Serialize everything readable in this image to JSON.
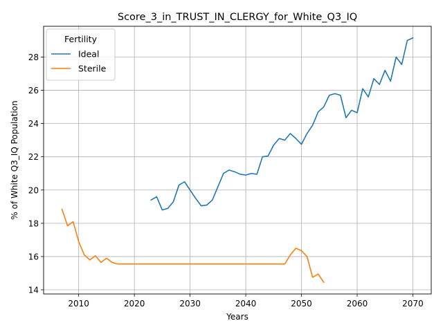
{
  "chart_data": {
    "type": "line",
    "title": "Score_3_in_TRUST_IN_CLERGY_for_White_Q3_IQ",
    "xlabel": "Years",
    "ylabel": "% of White Q3_IQ Population",
    "xlim": [
      2003.7,
      2073.3
    ],
    "ylim": [
      13.75,
      29.85
    ],
    "xticks": [
      2010,
      2020,
      2030,
      2040,
      2050,
      2060,
      2070
    ],
    "yticks": [
      14,
      16,
      18,
      20,
      22,
      24,
      26,
      28
    ],
    "grid": true,
    "legend": {
      "title": "Fertility",
      "position": "top-left"
    },
    "series": [
      {
        "name": "Ideal",
        "color": "#1f77b4",
        "x": [
          2023,
          2024,
          2025,
          2026,
          2027,
          2028,
          2029,
          2030,
          2031,
          2032,
          2033,
          2034,
          2035,
          2036,
          2037,
          2038,
          2039,
          2040,
          2041,
          2042,
          2043,
          2044,
          2045,
          2046,
          2047,
          2048,
          2049,
          2050,
          2051,
          2052,
          2053,
          2054,
          2055,
          2056,
          2057,
          2058,
          2059,
          2060,
          2061,
          2062,
          2063,
          2064,
          2065,
          2066,
          2067,
          2068,
          2069,
          2070
        ],
        "y": [
          19.4,
          19.6,
          18.8,
          18.9,
          19.3,
          20.3,
          20.5,
          20.0,
          19.5,
          19.05,
          19.1,
          19.4,
          20.2,
          21.0,
          21.2,
          21.1,
          20.95,
          20.9,
          21.0,
          20.95,
          22.0,
          22.05,
          22.7,
          23.1,
          23.0,
          23.4,
          23.1,
          22.75,
          23.4,
          23.9,
          24.7,
          25.0,
          25.7,
          25.8,
          25.7,
          24.35,
          24.8,
          24.65,
          26.1,
          25.6,
          26.7,
          26.35,
          27.2,
          26.55,
          28.0,
          27.55,
          29.0,
          29.15
        ]
      },
      {
        "name": "Sterile",
        "color": "#ff7f0e",
        "x": [
          2007,
          2008,
          2009,
          2010,
          2011,
          2012,
          2013,
          2014,
          2015,
          2016,
          2017,
          2018,
          2019,
          2020,
          2021,
          2022,
          2023,
          2024,
          2025,
          2026,
          2027,
          2028,
          2029,
          2030,
          2031,
          2032,
          2033,
          2034,
          2035,
          2036,
          2037,
          2038,
          2039,
          2040,
          2041,
          2042,
          2043,
          2044,
          2045,
          2046,
          2047,
          2048,
          2049,
          2050,
          2051,
          2052,
          2053,
          2054
        ],
        "y": [
          18.85,
          17.85,
          18.1,
          16.9,
          16.1,
          15.8,
          16.05,
          15.65,
          15.9,
          15.65,
          15.55,
          15.55,
          15.55,
          15.55,
          15.55,
          15.55,
          15.55,
          15.55,
          15.55,
          15.55,
          15.55,
          15.55,
          15.55,
          15.55,
          15.55,
          15.55,
          15.55,
          15.55,
          15.55,
          15.55,
          15.55,
          15.55,
          15.55,
          15.55,
          15.55,
          15.55,
          15.55,
          15.55,
          15.55,
          15.55,
          15.55,
          16.1,
          16.5,
          16.35,
          16.0,
          14.75,
          14.95,
          14.45
        ]
      }
    ]
  }
}
